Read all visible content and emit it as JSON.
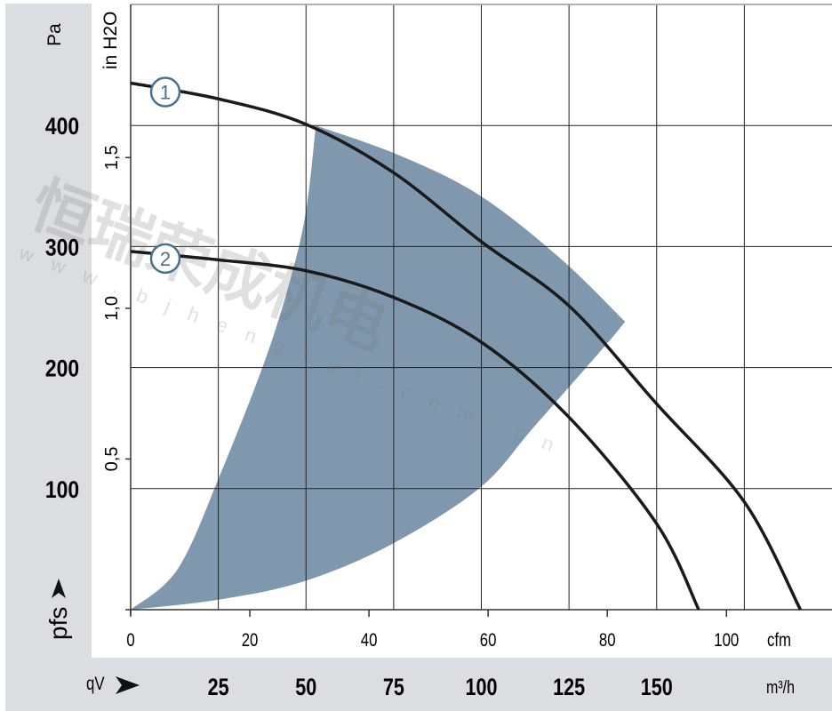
{
  "chart_data": {
    "type": "line",
    "title": "",
    "y_label_primary": "Pa",
    "y_label_secondary": "in H2O",
    "y_axis_symbol": "pfs",
    "x_axis_symbol": "qV",
    "x_unit_primary": "m³/h",
    "x_unit_secondary": "cfm",
    "xlim": [
      0,
      200
    ],
    "ylim": [
      0,
      500
    ],
    "grid": true,
    "y_ticks_pa": [
      "100",
      "200",
      "300",
      "400"
    ],
    "y_ticks_inh2o": [
      "0,5",
      "1,0",
      "1,5"
    ],
    "x_ticks_m3h": [
      "25",
      "50",
      "75",
      "100",
      "125",
      "150"
    ],
    "x_ticks_cfm": [
      "0",
      "20",
      "40",
      "60",
      "80",
      "100"
    ],
    "series": [
      {
        "label": "1",
        "x": [
          0,
          25,
          50,
          75,
          100,
          125,
          150,
          175,
          191
        ],
        "y": [
          435,
          422,
          401,
          361,
          304,
          251,
          170,
          89,
          0
        ]
      },
      {
        "label": "2",
        "x": [
          0,
          25,
          50,
          75,
          100,
          125,
          150,
          162
        ],
        "y": [
          296,
          289,
          280,
          258,
          221,
          159,
          71,
          0
        ]
      }
    ],
    "operating_region": {
      "upper": {
        "x": [
          0,
          13.5,
          26,
          38.8,
          46.5,
          50.3,
          52.8,
          76.9,
          99.7,
          122.6,
          141
        ],
        "y": [
          0,
          34,
          115,
          210,
          283,
          335,
          400,
          375,
          342,
          290,
          238
        ]
      },
      "lower": {
        "x": [
          141,
          135.3,
          115,
          99.7,
          74.4,
          49,
          24.4,
          0
        ],
        "y": [
          238,
          218,
          151,
          101,
          54,
          23,
          8,
          0
        ]
      }
    },
    "colors": {
      "region": "#7f98ae",
      "curve": "#1a1a1a",
      "marker": "#4a6f8f",
      "panel": "#dcdde0"
    }
  },
  "watermark": {
    "text_cn": "恒瑞荣成机电",
    "url": "www.bjhengrui.com.cn"
  }
}
